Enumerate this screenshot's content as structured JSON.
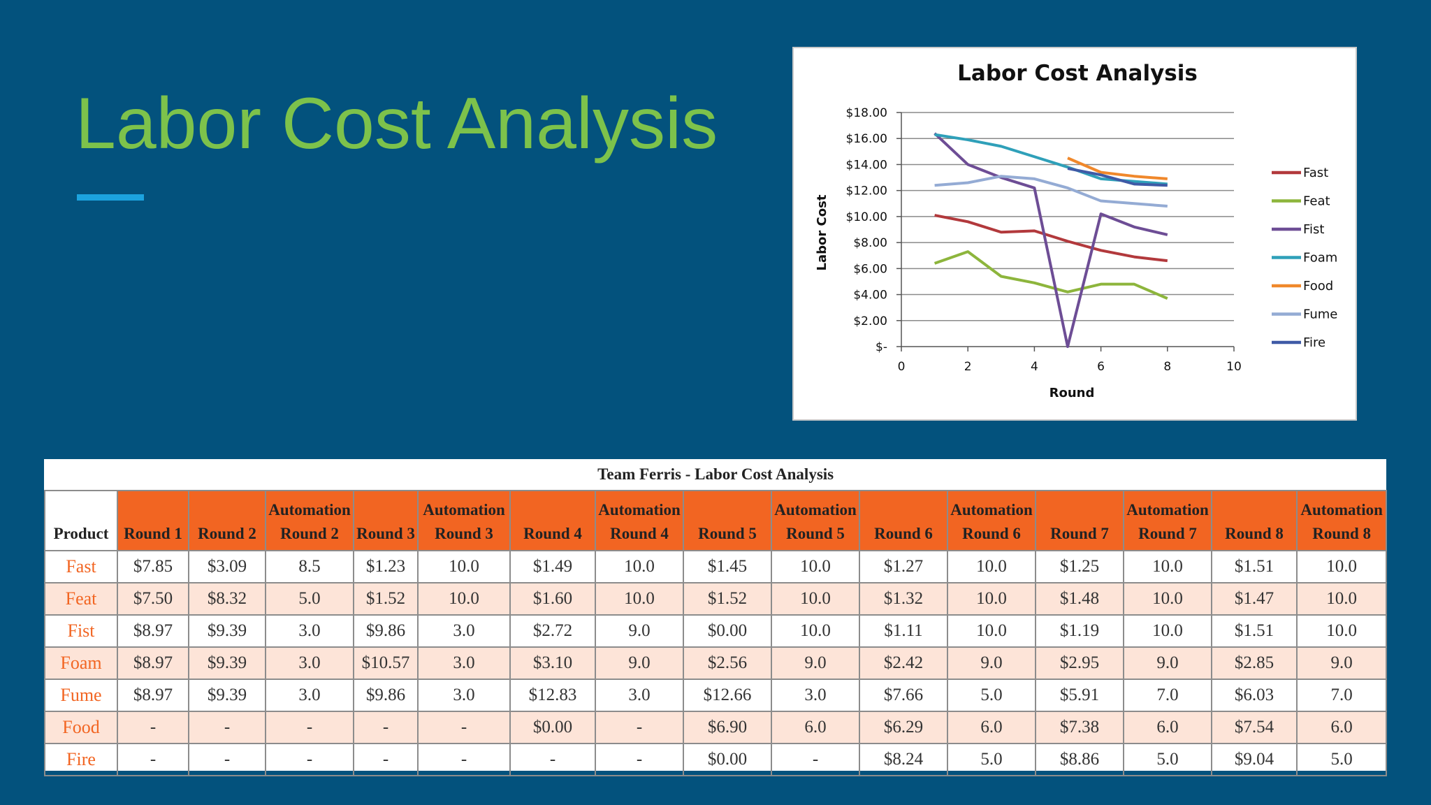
{
  "slide": {
    "title": "Labor Cost Analysis"
  },
  "colors": {
    "background": "#03527d",
    "title": "#7dc24b",
    "accent_bar": "#1ca3df",
    "table_header": "#f26522",
    "table_alt_row": "#fde4d8"
  },
  "chart_data": {
    "type": "line",
    "title": "Labor Cost Analysis",
    "xlabel": "Round",
    "ylabel": "Labor Cost",
    "xlim": [
      0,
      10
    ],
    "ylim": [
      0,
      18
    ],
    "x_ticks": [
      "0",
      "2",
      "4",
      "6",
      "8",
      "10"
    ],
    "y_ticks": [
      "$-",
      "$2.00",
      "$4.00",
      "$6.00",
      "$8.00",
      "$10.00",
      "$12.00",
      "$14.00",
      "$16.00",
      "$18.00"
    ],
    "grid": true,
    "legend_position": "right",
    "series": [
      {
        "name": "Fast",
        "color": "#b2393c",
        "x": [
          1,
          2,
          3,
          4,
          5,
          6,
          7,
          8
        ],
        "values": [
          10.1,
          9.6,
          8.8,
          8.9,
          8.1,
          7.4,
          6.9,
          6.6
        ]
      },
      {
        "name": "Feat",
        "color": "#8db53c",
        "x": [
          1,
          2,
          3,
          4,
          5,
          6,
          7,
          8
        ],
        "values": [
          6.4,
          7.3,
          5.4,
          4.9,
          4.2,
          4.8,
          4.8,
          3.7
        ]
      },
      {
        "name": "Fist",
        "color": "#6d4d95",
        "x": [
          1,
          2,
          3,
          4,
          5,
          6,
          7,
          8
        ],
        "values": [
          16.4,
          14.0,
          13.0,
          12.2,
          0.0,
          10.2,
          9.2,
          8.6
        ]
      },
      {
        "name": "Foam",
        "color": "#2fa0b9",
        "x": [
          1,
          2,
          3,
          4,
          5,
          6,
          7,
          8
        ],
        "values": [
          16.3,
          15.9,
          15.4,
          14.6,
          13.8,
          12.9,
          12.7,
          12.5
        ]
      },
      {
        "name": "Food",
        "color": "#f0882b",
        "x": [
          5,
          6,
          7,
          8
        ],
        "values": [
          14.5,
          13.4,
          13.1,
          12.9
        ]
      },
      {
        "name": "Fume",
        "color": "#94abd4",
        "x": [
          1,
          2,
          3,
          4,
          5,
          6,
          7,
          8
        ],
        "values": [
          12.4,
          12.6,
          13.1,
          12.9,
          12.2,
          11.2,
          11.0,
          10.8
        ]
      },
      {
        "name": "Fire",
        "color": "#3f5aa6",
        "x": [
          5,
          6,
          7,
          8
        ],
        "values": [
          13.7,
          13.2,
          12.5,
          12.4
        ]
      }
    ]
  },
  "table": {
    "caption": "Team Ferris - Labor Cost Analysis",
    "headers": [
      "Product",
      "Round 1",
      "Round 2",
      "Automation Round 2",
      "Round 3",
      "Automation Round 3",
      "Round 4",
      "Automation Round 4",
      "Round 5",
      "Automation Round 5",
      "Round 6",
      "Automation Round 6",
      "Round 7",
      "Automation Round 7",
      "Round 8",
      "Automation Round 8"
    ],
    "rows": [
      [
        "Fast",
        "$7.85",
        "$3.09",
        "8.5",
        "$1.23",
        "10.0",
        "$1.49",
        "10.0",
        "$1.45",
        "10.0",
        "$1.27",
        "10.0",
        "$1.25",
        "10.0",
        "$1.51",
        "10.0"
      ],
      [
        "Feat",
        "$7.50",
        "$8.32",
        "5.0",
        "$1.52",
        "10.0",
        "$1.60",
        "10.0",
        "$1.52",
        "10.0",
        "$1.32",
        "10.0",
        "$1.48",
        "10.0",
        "$1.47",
        "10.0"
      ],
      [
        "Fist",
        "$8.97",
        "$9.39",
        "3.0",
        "$9.86",
        "3.0",
        "$2.72",
        "9.0",
        "$0.00",
        "10.0",
        "$1.11",
        "10.0",
        "$1.19",
        "10.0",
        "$1.51",
        "10.0"
      ],
      [
        "Foam",
        "$8.97",
        "$9.39",
        "3.0",
        "$10.57",
        "3.0",
        "$3.10",
        "9.0",
        "$2.56",
        "9.0",
        "$2.42",
        "9.0",
        "$2.95",
        "9.0",
        "$2.85",
        "9.0"
      ],
      [
        "Fume",
        "$8.97",
        "$9.39",
        "3.0",
        "$9.86",
        "3.0",
        "$12.83",
        "3.0",
        "$12.66",
        "3.0",
        "$7.66",
        "5.0",
        "$5.91",
        "7.0",
        "$6.03",
        "7.0"
      ],
      [
        "Food",
        "-",
        "-",
        "-",
        "-",
        "-",
        "$0.00",
        "-",
        "$6.90",
        "6.0",
        "$6.29",
        "6.0",
        "$7.38",
        "6.0",
        "$7.54",
        "6.0"
      ],
      [
        "Fire",
        "-",
        "-",
        "-",
        "-",
        "-",
        "-",
        "-",
        "$0.00",
        "-",
        "$8.24",
        "5.0",
        "$8.86",
        "5.0",
        "$9.04",
        "5.0"
      ]
    ]
  }
}
